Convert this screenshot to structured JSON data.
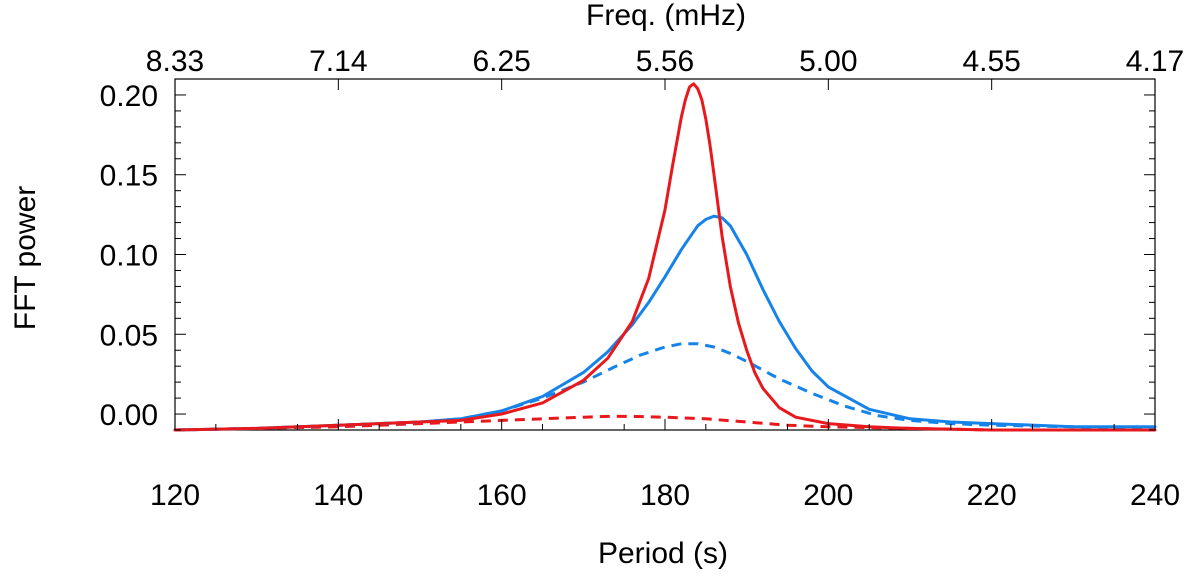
{
  "chart_data": {
    "type": "line",
    "title": "",
    "xlabel": "Period (s)",
    "ylabel": "FFT power",
    "top_xlabel": "Freq. (mHz)",
    "xlim": [
      120,
      240
    ],
    "ylim": [
      -0.01,
      0.21
    ],
    "xticks": [
      120,
      140,
      160,
      180,
      200,
      220,
      240
    ],
    "xtick_labels": [
      "120",
      "140",
      "160",
      "180",
      "200",
      "220",
      "240"
    ],
    "yticks": [
      0.0,
      0.05,
      0.1,
      0.15,
      0.2
    ],
    "ytick_labels": [
      "0.00",
      "0.05",
      "0.10",
      "0.15",
      "0.20"
    ],
    "top_xticks": [
      120,
      140,
      160,
      180,
      200,
      220,
      240
    ],
    "top_xtick_labels": [
      "8.33",
      "7.14",
      "6.25",
      "5.56",
      "5.00",
      "4.55",
      "4.17"
    ],
    "grid": false,
    "series": [
      {
        "name": "red-solid",
        "color": "#e8191c",
        "dash": "solid",
        "x": [
          120,
          130,
          140,
          145,
          150,
          155,
          160,
          165,
          170,
          173,
          176,
          178,
          180,
          181,
          182,
          182.5,
          183,
          183.5,
          184,
          184.5,
          185,
          185.5,
          186,
          187,
          188,
          189,
          190,
          191,
          192,
          194,
          196,
          200,
          205,
          210,
          220,
          230,
          240
        ],
        "y": [
          -0.01,
          -0.009,
          -0.007,
          -0.006,
          -0.005,
          -0.004,
          0.0,
          0.007,
          0.021,
          0.035,
          0.058,
          0.085,
          0.128,
          0.158,
          0.186,
          0.197,
          0.205,
          0.207,
          0.204,
          0.197,
          0.185,
          0.169,
          0.15,
          0.111,
          0.08,
          0.057,
          0.04,
          0.026,
          0.016,
          0.004,
          -0.002,
          -0.006,
          -0.008,
          -0.009,
          -0.01,
          -0.01,
          -0.01
        ]
      },
      {
        "name": "blue-solid",
        "color": "#1583e8",
        "dash": "solid",
        "x": [
          120,
          130,
          140,
          145,
          150,
          155,
          160,
          165,
          170,
          173,
          176,
          178,
          180,
          182,
          184,
          185,
          186,
          187,
          188,
          190,
          192,
          194,
          196,
          198,
          200,
          205,
          210,
          215,
          220,
          230,
          240
        ],
        "y": [
          -0.01,
          -0.009,
          -0.007,
          -0.006,
          -0.005,
          -0.003,
          0.002,
          0.011,
          0.026,
          0.039,
          0.056,
          0.07,
          0.086,
          0.103,
          0.118,
          0.122,
          0.124,
          0.123,
          0.118,
          0.1,
          0.078,
          0.058,
          0.041,
          0.027,
          0.017,
          0.003,
          -0.003,
          -0.005,
          -0.006,
          -0.008,
          -0.008
        ]
      },
      {
        "name": "blue-dashed",
        "color": "#1583e8",
        "dash": "dashed",
        "x": [
          120,
          130,
          140,
          150,
          155,
          160,
          165,
          170,
          174,
          177,
          180,
          182,
          184,
          186,
          188,
          190,
          194,
          198,
          202,
          206,
          210,
          215,
          220,
          230,
          240
        ],
        "y": [
          -0.01,
          -0.009,
          -0.007,
          -0.005,
          -0.003,
          0.002,
          0.01,
          0.02,
          0.03,
          0.037,
          0.042,
          0.044,
          0.044,
          0.042,
          0.038,
          0.033,
          0.022,
          0.013,
          0.005,
          -0.001,
          -0.004,
          -0.006,
          -0.007,
          -0.008,
          -0.009
        ]
      },
      {
        "name": "red-dashed",
        "color": "#e8191c",
        "dash": "dashed",
        "x": [
          120,
          130,
          140,
          150,
          160,
          165,
          170,
          173,
          176,
          180,
          185,
          190,
          195,
          200,
          210,
          220,
          230,
          240
        ],
        "y": [
          -0.01,
          -0.009,
          -0.008,
          -0.006,
          -0.004,
          -0.003,
          -0.002,
          -0.0015,
          -0.0015,
          -0.002,
          -0.003,
          -0.005,
          -0.007,
          -0.008,
          -0.009,
          -0.01,
          -0.01,
          -0.01
        ]
      }
    ]
  }
}
